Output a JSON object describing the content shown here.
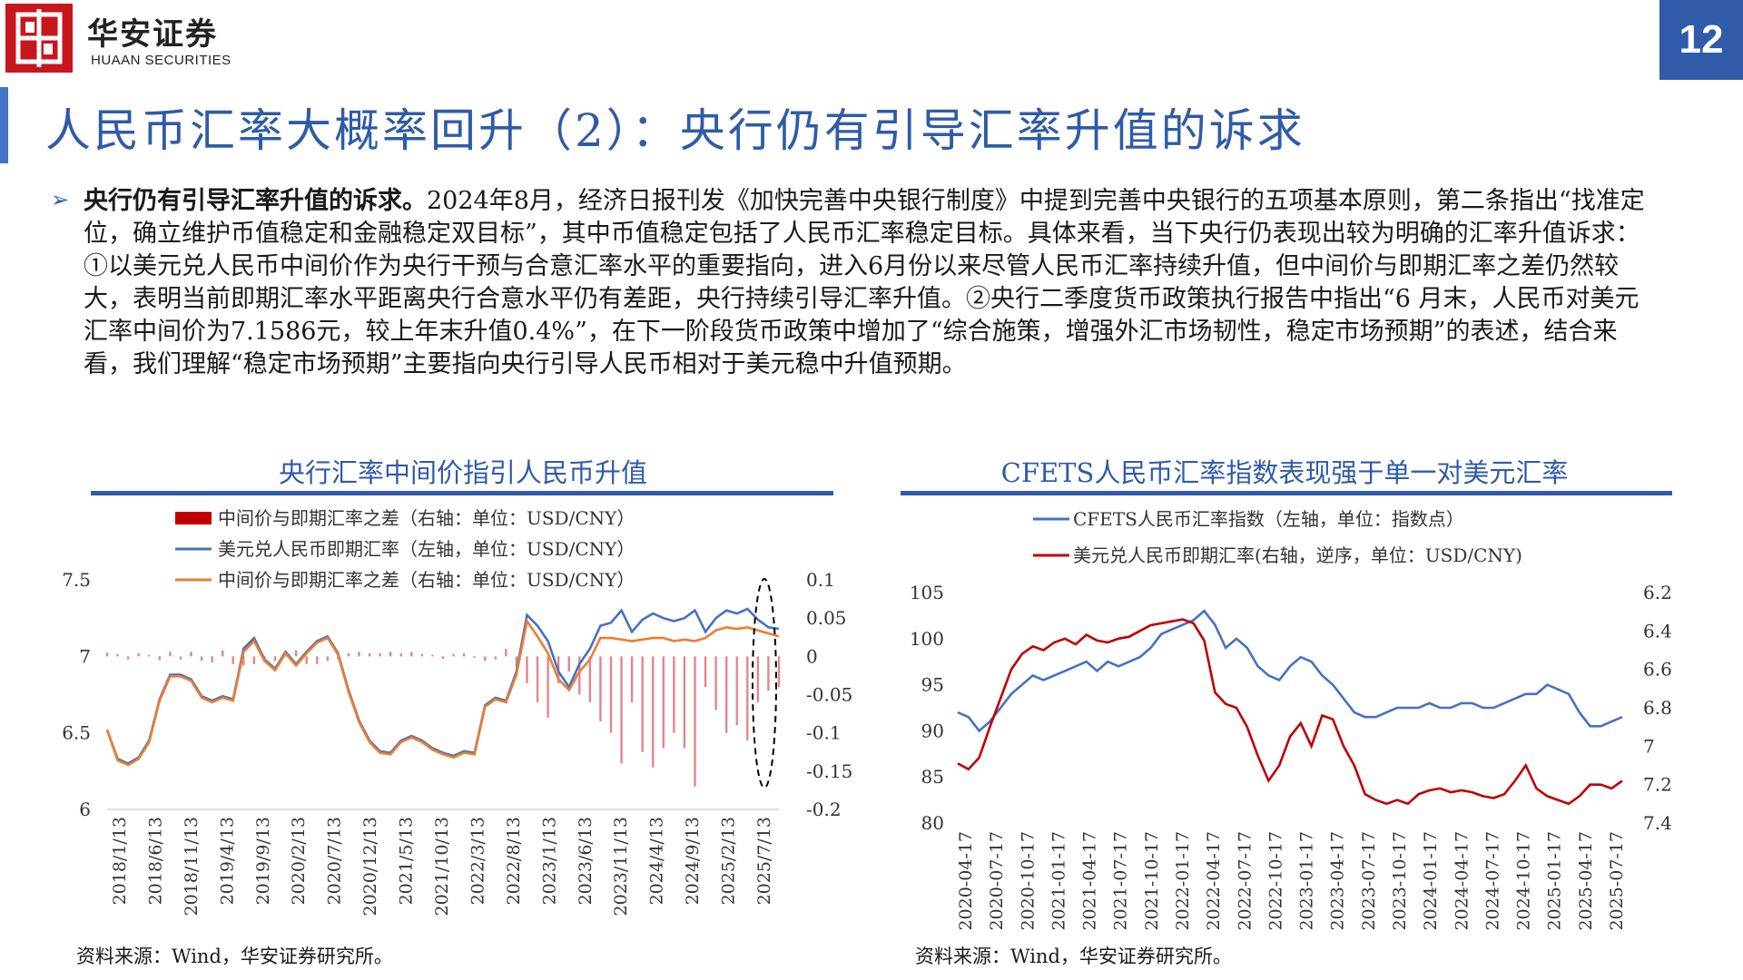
{
  "header": {
    "brand_cn": "华安证券",
    "brand_en": "HUAAN SECURITIES",
    "page_number": "12",
    "title": "人民币汇率大概率回升（2）：央行仍有引导汇率升值的诉求"
  },
  "body": {
    "lead": "央行仍有引导汇率升值的诉求。",
    "text": "2024年8月，经济日报刊发《加快完善中央银行制度》中提到完善中央银行的五项基本原则，第二条指出“找准定位，确立维护币值稳定和金融稳定双目标”，其中币值稳定包括了人民币汇率稳定目标。具体来看，当下央行仍表现出较为明确的汇率升值诉求：①以美元兑人民币中间价作为央行干预与合意汇率水平的重要指向，进入6月份以来尽管人民币汇率持续升值，但中间价与即期汇率之差仍然较大，表明当前即期汇率水平距离央行合意水平仍有差距，央行持续引导汇率升值。②央行二季度货币政策执行报告中指出“6 月末，人民币对美元汇率中间价为7.1586元，较上年末升值0.4%”，在下一阶段货币政策中增加了“综合施策，增强外汇市场韧性，稳定市场预期”的表述，结合来看，我们理解“稳定市场预期”主要指向央行引导人民币相对于美元稳中升值预期。"
  },
  "colors": {
    "brand_blue": "#2f5ba8",
    "brand_red": "#c8161d",
    "line_blue": "#4472c4",
    "line_orange": "#ed7d31",
    "line_red": "#c00000",
    "bar_red": "#e3868a"
  },
  "chart_data": [
    {
      "type": "line",
      "title": "央行汇率中间价指引人民币升值",
      "legend": [
        "中间价与即期汇率之差（右轴：单位：USD/CNY）",
        "美元兑人民币即期汇率（左轴，单位：USD/CNY）",
        "中间价与即期汇率之差（右轴：单位：USD/CNY）"
      ],
      "legend_position": "top",
      "source": "资料来源：Wind，华安证券研究所。",
      "x_ticks": [
        "2018/1/13",
        "2018/6/13",
        "2018/11/13",
        "2019/4/13",
        "2019/9/13",
        "2020/2/13",
        "2020/7/13",
        "2020/12/13",
        "2021/5/13",
        "2021/10/13",
        "2022/3/13",
        "2022/8/13",
        "2023/1/13",
        "2023/6/13",
        "2023/11/13",
        "2024/4/13",
        "2024/9/13",
        "2025/2/13",
        "2025/7/13"
      ],
      "y_left": {
        "range": [
          6,
          7.5
        ],
        "ticks": [
          "7.5",
          "7",
          "6.5",
          "6"
        ]
      },
      "y_right": {
        "range": [
          -0.2,
          0.1
        ],
        "ticks": [
          "0.1",
          "0.05",
          "0",
          "-0.05",
          "-0.1",
          "-0.15",
          "-0.2"
        ]
      },
      "series": [
        {
          "name": "美元兑人民币即期汇率（左轴，单位：USD/CNY）",
          "axis": "left",
          "values": [
            6.52,
            6.33,
            6.3,
            6.34,
            6.45,
            6.72,
            6.88,
            6.88,
            6.85,
            6.74,
            6.71,
            6.74,
            6.72,
            7.05,
            7.12,
            6.98,
            6.92,
            7.03,
            6.95,
            7.03,
            7.1,
            7.13,
            7.02,
            6.78,
            6.58,
            6.45,
            6.38,
            6.37,
            6.45,
            6.48,
            6.45,
            6.4,
            6.37,
            6.35,
            6.38,
            6.37,
            6.68,
            6.73,
            6.71,
            6.9,
            7.27,
            7.2,
            7.1,
            6.9,
            6.8,
            6.95,
            7.05,
            7.2,
            7.22,
            7.3,
            7.16,
            7.24,
            7.28,
            7.25,
            7.23,
            7.25,
            7.3,
            7.16,
            7.25,
            7.3,
            7.28,
            7.31,
            7.24,
            7.19,
            7.18
          ]
        },
        {
          "name": "中间价与即期汇率之差（右轴：单位：USD/CNY）",
          "axis": "left",
          "values": [
            6.52,
            6.32,
            6.29,
            6.33,
            6.44,
            6.71,
            6.87,
            6.87,
            6.84,
            6.73,
            6.7,
            6.73,
            6.71,
            7.03,
            7.1,
            6.97,
            6.91,
            7.02,
            6.94,
            7.02,
            7.09,
            7.12,
            7.01,
            6.77,
            6.57,
            6.44,
            6.37,
            6.36,
            6.44,
            6.47,
            6.44,
            6.39,
            6.36,
            6.34,
            6.37,
            6.36,
            6.67,
            6.72,
            6.7,
            6.88,
            7.23,
            7.13,
            7.02,
            6.85,
            6.78,
            6.9,
            6.98,
            7.12,
            7.12,
            7.11,
            7.1,
            7.11,
            7.12,
            7.12,
            7.1,
            7.11,
            7.1,
            7.12,
            7.17,
            7.19,
            7.18,
            7.19,
            7.17,
            7.15,
            7.13
          ]
        },
        {
          "name": "中间价与即期汇率之差（右轴：单位：USD/CNY）",
          "axis": "right",
          "type": "bar",
          "values": [
            0.005,
            0.003,
            -0.004,
            0.004,
            0.002,
            -0.005,
            0.006,
            -0.004,
            0.006,
            -0.006,
            -0.008,
            0.008,
            -0.01,
            -0.012,
            -0.01,
            -0.008,
            -0.006,
            0.004,
            0.008,
            -0.01,
            -0.01,
            -0.006,
            -0.004,
            0.004,
            0.006,
            0.004,
            0.004,
            0.006,
            0.004,
            0.006,
            0.003,
            0.002,
            -0.003,
            0.003,
            0.004,
            -0.002,
            -0.006,
            -0.004,
            0.01,
            -0.014,
            -0.035,
            -0.06,
            -0.08,
            -0.035,
            -0.02,
            -0.05,
            -0.06,
            -0.085,
            -0.1,
            -0.14,
            -0.06,
            -0.125,
            -0.145,
            -0.12,
            -0.1,
            -0.12,
            -0.17,
            -0.04,
            -0.07,
            -0.1,
            -0.09,
            -0.11,
            -0.06,
            -0.045,
            -0.04
          ]
        }
      ]
    },
    {
      "type": "line",
      "title": "CFETS人民币汇率指数表现强于单一对美元汇率",
      "legend": [
        "CFETS人民币汇率指数（左轴，单位：指数点）",
        "美元兑人民币即期汇率(右轴，逆序，单位：USD/CNY)"
      ],
      "legend_position": "top",
      "source": "资料来源：Wind，华安证券研究所。",
      "x_ticks": [
        "2020-04-17",
        "2020-07-17",
        "2020-10-17",
        "2021-01-17",
        "2021-04-17",
        "2021-07-17",
        "2021-10-17",
        "2022-01-17",
        "2022-04-17",
        "2022-07-17",
        "2022-10-17",
        "2023-01-17",
        "2023-04-17",
        "2023-07-17",
        "2023-10-17",
        "2024-01-17",
        "2024-04-17",
        "2024-07-17",
        "2024-10-17",
        "2025-01-17",
        "2025-04-17",
        "2025-07-17"
      ],
      "y_left": {
        "range": [
          80,
          105
        ],
        "ticks": [
          "105",
          "100",
          "95",
          "90",
          "85",
          "80"
        ]
      },
      "y_right": {
        "range": [
          6.2,
          7.4
        ],
        "reversed": true,
        "ticks": [
          "6.2",
          "6.4",
          "6.6",
          "6.8",
          "7",
          "7.2",
          "7.4"
        ]
      },
      "series": [
        {
          "name": "CFETS人民币汇率指数（左轴，单位：指数点）",
          "axis": "left",
          "values": [
            92,
            91.5,
            90,
            91,
            92.5,
            94,
            95,
            96,
            95.5,
            96,
            96.5,
            97,
            97.5,
            96.5,
            97.5,
            97,
            97.5,
            98,
            99,
            100.5,
            101,
            101.5,
            102,
            103,
            101.5,
            99,
            100,
            99,
            97,
            96,
            95.5,
            97,
            98,
            97.5,
            96,
            95,
            93.5,
            92,
            91.5,
            91.5,
            92,
            92.5,
            92.5,
            92.5,
            93,
            92.5,
            92.5,
            93,
            93,
            92.5,
            92.5,
            93,
            93.5,
            94,
            94,
            95,
            94.5,
            94,
            92,
            90.5,
            90.5,
            91,
            91.5
          ]
        },
        {
          "name": "美元兑人民币即期汇率(右轴，逆序，单位：USD/CNY)",
          "axis": "right",
          "values": [
            7.09,
            7.12,
            7.06,
            6.9,
            6.75,
            6.6,
            6.52,
            6.48,
            6.5,
            6.46,
            6.44,
            6.47,
            6.42,
            6.45,
            6.46,
            6.44,
            6.43,
            6.4,
            6.37,
            6.36,
            6.35,
            6.34,
            6.36,
            6.45,
            6.72,
            6.78,
            6.8,
            6.9,
            7.05,
            7.18,
            7.1,
            6.95,
            6.88,
            7.0,
            6.84,
            6.86,
            7.0,
            7.1,
            7.25,
            7.28,
            7.3,
            7.28,
            7.3,
            7.25,
            7.23,
            7.22,
            7.24,
            7.23,
            7.24,
            7.26,
            7.27,
            7.25,
            7.18,
            7.1,
            7.22,
            7.26,
            7.28,
            7.3,
            7.26,
            7.2,
            7.2,
            7.22,
            7.18
          ]
        }
      ]
    }
  ]
}
